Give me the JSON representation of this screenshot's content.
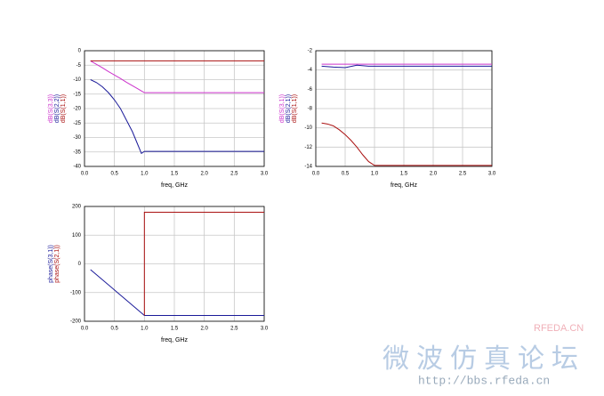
{
  "chart_data": [
    {
      "type": "line",
      "xlabel": "freq, GHz",
      "xlim": [
        0,
        3
      ],
      "xticks": [
        {
          "value": 0,
          "label": "0.0"
        },
        0.5,
        {
          "value": 1,
          "label": "1.0"
        },
        1.5,
        {
          "value": 2,
          "label": "2.0"
        },
        2.5,
        {
          "value": 3,
          "label": "3.0"
        }
      ],
      "ylim": [
        -40,
        0
      ],
      "yticks": [
        0,
        -5,
        -10,
        -15,
        -20,
        -25,
        -30,
        -35,
        -40
      ],
      "grid": true,
      "series": [
        {
          "name": "dB(S(3,3))",
          "color": "#cc33cc",
          "x": [
            0.1,
            0.2,
            0.3,
            0.4,
            0.5,
            0.6,
            0.7,
            0.8,
            0.9,
            0.95,
            1.0,
            1.5,
            2.0,
            2.5,
            3.0
          ],
          "values": [
            -3.5,
            -4.7,
            -5.9,
            -7.2,
            -8.4,
            -9.6,
            -10.9,
            -12.1,
            -13.3,
            -13.9,
            -14.5,
            -14.5,
            -14.5,
            -14.5,
            -14.5
          ]
        },
        {
          "name": "dB(S(2,2))",
          "color": "#1a1a99",
          "x": [
            0.1,
            0.2,
            0.3,
            0.4,
            0.5,
            0.6,
            0.7,
            0.8,
            0.9,
            0.95,
            1.0,
            1.5,
            2.0,
            2.5,
            3.0
          ],
          "values": [
            -10,
            -11,
            -12.5,
            -14.5,
            -17,
            -20,
            -24,
            -28,
            -33,
            -35.5,
            -34.8,
            -34.8,
            -34.8,
            -34.8,
            -34.8
          ]
        },
        {
          "name": "dB(S(1,1))",
          "color": "#aa1111",
          "x": [
            0.1,
            1.0,
            2.0,
            3.0
          ],
          "values": [
            -3.5,
            -3.5,
            -3.5,
            -3.5
          ]
        }
      ]
    },
    {
      "type": "line",
      "xlabel": "freq, GHz",
      "xlim": [
        0,
        3
      ],
      "xticks": [
        {
          "value": 0,
          "label": "0.0"
        },
        0.5,
        {
          "value": 1,
          "label": "1.0"
        },
        1.5,
        {
          "value": 2,
          "label": "2.0"
        },
        2.5,
        {
          "value": 3,
          "label": "3.0"
        }
      ],
      "ylim": [
        -14,
        -2
      ],
      "yticks": [
        -2,
        -4,
        -6,
        -8,
        -10,
        -12,
        -14
      ],
      "grid": true,
      "series": [
        {
          "name": "dB(S(3,1))",
          "color": "#cc33cc",
          "x": [
            0.1,
            1.0,
            2.0,
            3.0
          ],
          "values": [
            -3.4,
            -3.4,
            -3.4,
            -3.4
          ]
        },
        {
          "name": "dB(S(2,1))",
          "color": "#1a1a99",
          "x": [
            0.1,
            0.3,
            0.5,
            0.7,
            0.9,
            1.0,
            2.0,
            3.0
          ],
          "values": [
            -3.6,
            -3.7,
            -3.75,
            -3.5,
            -3.6,
            -3.6,
            -3.6,
            -3.6
          ]
        },
        {
          "name": "dB(S(1,1))",
          "color": "#aa1111",
          "x": [
            0.1,
            0.2,
            0.3,
            0.4,
            0.5,
            0.6,
            0.7,
            0.8,
            0.9,
            1.0,
            1.5,
            2.0,
            2.5,
            3.0
          ],
          "values": [
            -9.5,
            -9.6,
            -9.8,
            -10.2,
            -10.7,
            -11.3,
            -12,
            -12.8,
            -13.5,
            -13.9,
            -13.9,
            -13.9,
            -13.9,
            -13.9
          ]
        }
      ]
    },
    {
      "type": "line",
      "xlabel": "freq, GHz",
      "xlim": [
        0,
        3
      ],
      "xticks": [
        {
          "value": 0,
          "label": "0.0"
        },
        0.5,
        {
          "value": 1,
          "label": "1.0"
        },
        1.5,
        {
          "value": 2,
          "label": "2.0"
        },
        2.5,
        {
          "value": 3,
          "label": "3.0"
        }
      ],
      "ylim": [
        -200,
        200
      ],
      "yticks": [
        200,
        100,
        0,
        -100,
        -200
      ],
      "grid": true,
      "series": [
        {
          "name": "phase(S(3,1))",
          "color": "#1a1a99",
          "x": [
            0.1,
            0.5,
            1.0,
            2.0,
            3.0
          ],
          "values": [
            -20,
            -91,
            -180,
            -180,
            -180
          ]
        },
        {
          "name": "phase(S(2,1))",
          "color": "#aa1111",
          "x": [
            1.0,
            1.0,
            2.0,
            3.0
          ],
          "values": [
            -180,
            180,
            180,
            180
          ]
        }
      ]
    }
  ],
  "watermark": {
    "site": "RFEDA.CN",
    "title": "微波仿真论坛",
    "url": "http://bbs.rfeda.cn"
  }
}
